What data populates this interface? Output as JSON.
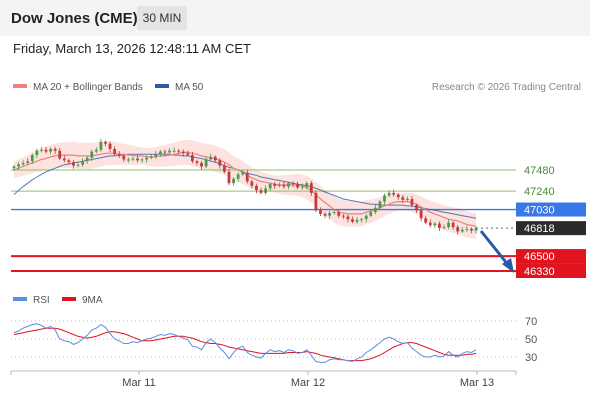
{
  "header": {
    "title": "Dow Jones (CME)",
    "timeframe": "30 MIN",
    "datetime": "Friday, March 13, 2026 12:48:11 AM CET"
  },
  "legend": {
    "ma20": "MA 20 + Bollinger Bands",
    "ma50": "MA 50",
    "credit": "Research © 2026 Trading Central",
    "rsi": "RSI",
    "rsi_ma": "9MA"
  },
  "colors": {
    "up": "#4a9a4a",
    "down": "#c23b3b",
    "ma20": "#f08080",
    "ma50": "#2e5aa8",
    "band_fill": "#fde0dc",
    "support": "#e0141e",
    "pivot": "#3a78e8",
    "resistance": "#8fbf6a",
    "current": "#2b2b2b",
    "arrow": "#2a5aa6",
    "rsi": "#5b8de0",
    "rsi_ma": "#e0141e"
  },
  "chart_data": {
    "type": "candlestick",
    "x_ticks": [
      "Mar 11",
      "Mar 12",
      "Mar 13"
    ],
    "price_ylim": [
      46250,
      47850
    ],
    "levels": [
      {
        "label": "47480",
        "value": 47480,
        "kind": "resistance"
      },
      {
        "label": "47240",
        "value": 47240,
        "kind": "resistance"
      },
      {
        "label": "47030",
        "value": 47030,
        "kind": "pivot"
      },
      {
        "label": "46818",
        "value": 46818,
        "kind": "current"
      },
      {
        "label": "46500",
        "value": 46500,
        "kind": "support"
      },
      {
        "label": "46330",
        "value": 46330,
        "kind": "support"
      }
    ],
    "close": [
      47520,
      47545,
      47560,
      47580,
      47650,
      47700,
      47710,
      47690,
      47720,
      47700,
      47610,
      47590,
      47570,
      47530,
      47540,
      47580,
      47620,
      47690,
      47710,
      47800,
      47780,
      47720,
      47660,
      47640,
      47600,
      47600,
      47610,
      47590,
      47600,
      47620,
      47630,
      47660,
      47690,
      47680,
      47700,
      47700,
      47690,
      47670,
      47650,
      47580,
      47560,
      47520,
      47600,
      47630,
      47590,
      47530,
      47460,
      47330,
      47380,
      47430,
      47450,
      47350,
      47300,
      47250,
      47220,
      47270,
      47320,
      47300,
      47310,
      47290,
      47330,
      47320,
      47280,
      47290,
      47330,
      47220,
      47020,
      46980,
      46960,
      46990,
      47000,
      46960,
      46950,
      46920,
      46890,
      46910,
      46920,
      46960,
      47000,
      47050,
      47120,
      47190,
      47220,
      47200,
      47170,
      47140,
      47150,
      47080,
      47020,
      46930,
      46880,
      46850,
      46870,
      46820,
      46830,
      46880,
      46830,
      46780,
      46800,
      46810,
      46790,
      46818
    ],
    "ma20": [
      47480,
      47500,
      47520,
      47540,
      47560,
      47580,
      47600,
      47610,
      47630,
      47640,
      47650,
      47650,
      47650,
      47650,
      47640,
      47640,
      47640,
      47640,
      47650,
      47660,
      47670,
      47670,
      47670,
      47660,
      47660,
      47650,
      47650,
      47640,
      47640,
      47630,
      47630,
      47630,
      47640,
      47640,
      47650,
      47660,
      47670,
      47680,
      47680,
      47670,
      47660,
      47640,
      47630,
      47620,
      47610,
      47590,
      47570,
      47540,
      47500,
      47480,
      47450,
      47420,
      47390,
      47370,
      47350,
      47340,
      47330,
      47320,
      47310,
      47310,
      47310,
      47310,
      47310,
      47300,
      47280,
      47250,
      47200,
      47150,
      47110,
      47070,
      47030,
      47000,
      46990,
      46980,
      46980,
      46980,
      46980,
      47000,
      47010,
      47030,
      47050,
      47070,
      47090,
      47110,
      47120,
      47120,
      47120,
      47110,
      47090,
      47060,
      47030,
      47000,
      46980,
      46960,
      46940,
      46920,
      46910,
      46900,
      46880,
      46860,
      46850,
      46840
    ],
    "ma50": [
      47200,
      47250,
      47290,
      47330,
      47370,
      47400,
      47430,
      47460,
      47480,
      47500,
      47520,
      47540,
      47550,
      47560,
      47570,
      47580,
      47590,
      47600,
      47610,
      47620,
      47630,
      47640,
      47640,
      47650,
      47650,
      47660,
      47660,
      47660,
      47660,
      47660,
      47660,
      47660,
      47660,
      47660,
      47660,
      47650,
      47650,
      47640,
      47640,
      47630,
      47620,
      47610,
      47600,
      47580,
      47570,
      47550,
      47530,
      47510,
      47500,
      47480,
      47460,
      47440,
      47430,
      47420,
      47400,
      47390,
      47380,
      47370,
      47360,
      47350,
      47340,
      47330,
      47320,
      47310,
      47300,
      47290,
      47270,
      47250,
      47230,
      47210,
      47190,
      47170,
      47150,
      47140,
      47130,
      47120,
      47110,
      47100,
      47090,
      47090,
      47080,
      47080,
      47080,
      47080,
      47080,
      47080,
      47070,
      47070,
      47060,
      47050,
      47040,
      47030,
      47020,
      47010,
      47000,
      46990,
      46980,
      46970,
      46960,
      46950,
      46940,
      46930
    ],
    "rsi_ticks": [
      70,
      50,
      30
    ],
    "rsi_ylim": [
      15,
      85
    ],
    "rsi": [
      57,
      59,
      62,
      64,
      66,
      67,
      65,
      62,
      64,
      60,
      50,
      48,
      47,
      44,
      46,
      50,
      54,
      60,
      62,
      66,
      63,
      56,
      50,
      48,
      45,
      45,
      47,
      46,
      48,
      50,
      51,
      53,
      55,
      54,
      56,
      55,
      53,
      51,
      49,
      42,
      41,
      38,
      46,
      50,
      46,
      40,
      35,
      28,
      35,
      40,
      42,
      35,
      32,
      30,
      29,
      34,
      38,
      36,
      37,
      35,
      38,
      37,
      34,
      35,
      38,
      32,
      25,
      24,
      24,
      27,
      28,
      27,
      27,
      26,
      25,
      28,
      30,
      35,
      38,
      42,
      46,
      50,
      52,
      50,
      47,
      45,
      46,
      40,
      36,
      32,
      30,
      30,
      32,
      30,
      31,
      36,
      32,
      30,
      34,
      36,
      35,
      38
    ],
    "rsi_ma": [
      55,
      56,
      57,
      58,
      59,
      60,
      61,
      62,
      62,
      62,
      61,
      59,
      57,
      55,
      53,
      52,
      51,
      52,
      53,
      55,
      57,
      58,
      58,
      57,
      56,
      54,
      52,
      50,
      48,
      48,
      48,
      49,
      50,
      51,
      52,
      53,
      53,
      53,
      52,
      51,
      49,
      47,
      46,
      45,
      45,
      44,
      43,
      41,
      40,
      39,
      38,
      37,
      36,
      35,
      34,
      34,
      34,
      34,
      34,
      34,
      35,
      35,
      35,
      35,
      36,
      35,
      34,
      32,
      31,
      30,
      29,
      28,
      27,
      26,
      26,
      26,
      26,
      27,
      28,
      30,
      32,
      35,
      38,
      41,
      43,
      45,
      46,
      46,
      45,
      43,
      41,
      39,
      37,
      35,
      33,
      32,
      32,
      32,
      32,
      33,
      33,
      34
    ]
  }
}
